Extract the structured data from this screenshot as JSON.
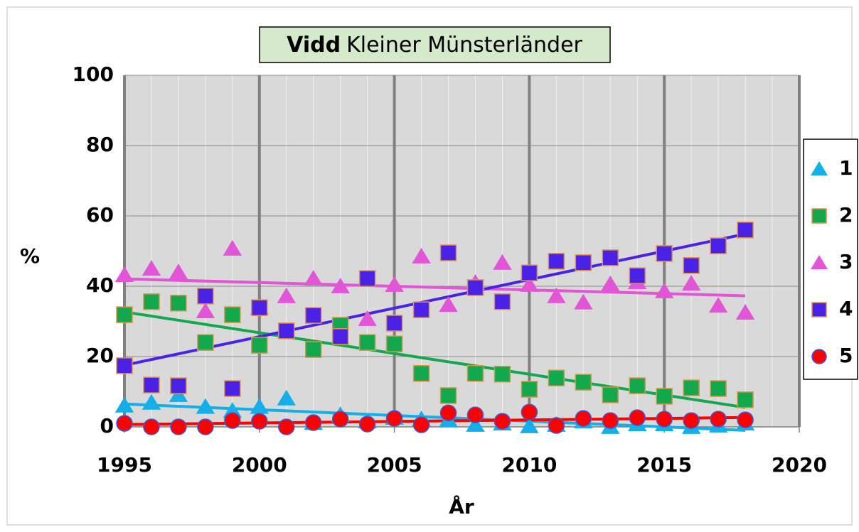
{
  "chart_data": {
    "type": "scatter",
    "title": [
      "Vidd",
      "Kleiner Münsterländer"
    ],
    "x_label": "År",
    "y_label": "%",
    "x": [
      1995,
      1996,
      1997,
      1998,
      1999,
      2000,
      2001,
      2002,
      2003,
      2004,
      2005,
      2006,
      2007,
      2008,
      2009,
      2010,
      2011,
      2012,
      2013,
      2014,
      2015,
      2016,
      2017,
      2018
    ],
    "series": [
      {
        "name": "1",
        "marker": "triangle",
        "color": "#14aee8",
        "values": [
          6.1,
          6.9,
          9.1,
          5.7,
          4.6,
          5.7,
          8.1,
          1.2,
          3.4,
          1.6,
          2.6,
          2.2,
          2,
          0.6,
          1,
          0.2,
          0.6,
          1.6,
          0,
          0.8,
          0.8,
          0,
          0.4,
          1
        ]
      },
      {
        "name": "2",
        "marker": "square",
        "color": "#13a84e",
        "values": [
          31.9,
          35.6,
          35.2,
          24,
          31.9,
          23.2,
          27.3,
          22,
          28.9,
          24,
          23.6,
          15.2,
          8.9,
          15.2,
          15,
          10.7,
          13.9,
          12.7,
          9.1,
          11.7,
          8.7,
          11.1,
          10.9,
          7.7
        ]
      },
      {
        "name": "3",
        "marker": "triangle",
        "color": "#e255d6",
        "values": [
          43.2,
          45,
          44,
          32.9,
          50.7,
          34,
          37.2,
          42.2,
          40,
          30.7,
          40.4,
          48.5,
          34.7,
          41,
          46.7,
          40.4,
          37.2,
          35.4,
          40.6,
          41.2,
          38.6,
          40.8,
          34.5,
          32.5
        ]
      },
      {
        "name": "4",
        "marker": "square",
        "color": "#4a22e6",
        "values": [
          17.4,
          11.9,
          11.7,
          37.2,
          10.9,
          33.9,
          27.3,
          31.7,
          25.7,
          42.2,
          29.5,
          33.3,
          49.5,
          39.6,
          35.6,
          43.8,
          47.1,
          46.7,
          48.1,
          43,
          49.3,
          45.9,
          51.5,
          56
        ]
      },
      {
        "name": "5",
        "marker": "circle",
        "color": "#ff0000",
        "values": [
          1,
          0,
          0,
          0,
          1.8,
          1.6,
          0,
          1.2,
          2.2,
          0.8,
          2.4,
          0.6,
          4,
          3.4,
          1.6,
          4.2,
          0.4,
          2.4,
          1.8,
          2.6,
          2.2,
          1.8,
          2.2,
          2
        ]
      }
    ],
    "xlim": [
      1995,
      2020
    ],
    "xticks": [
      1995,
      2000,
      2005,
      2010,
      2015,
      2020
    ],
    "ylim": [
      0,
      100
    ],
    "yticks": [
      0,
      20,
      40,
      60,
      80,
      100
    ],
    "grid": true,
    "trendline": true,
    "legend": "right"
  }
}
